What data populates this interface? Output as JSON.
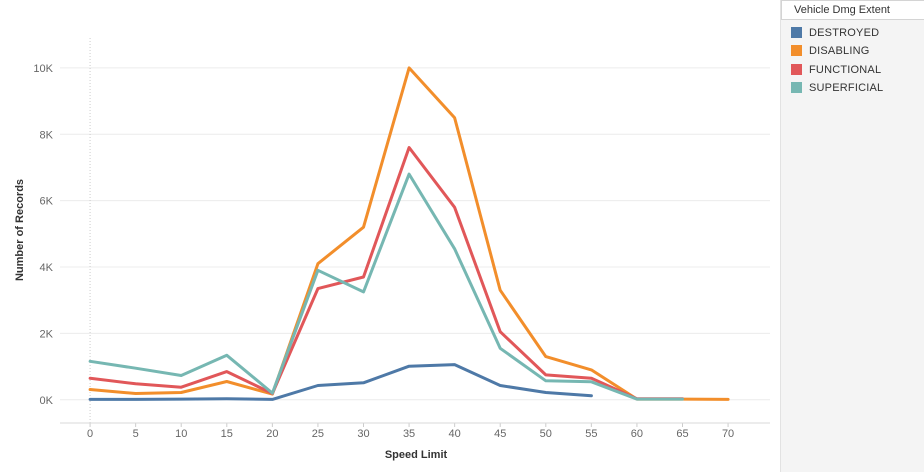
{
  "chart_data": {
    "type": "line",
    "xlabel": "Speed Limit",
    "ylabel": "Number of Records",
    "x": [
      0,
      5,
      10,
      15,
      20,
      25,
      30,
      35,
      40,
      45,
      50,
      55,
      60,
      65,
      70
    ],
    "x_tick_labels": [
      "0",
      "5",
      "10",
      "15",
      "20",
      "25",
      "30",
      "35",
      "40",
      "45",
      "50",
      "55",
      "60",
      "65",
      "70"
    ],
    "y_ticks": [
      0,
      2000,
      4000,
      6000,
      8000,
      10000
    ],
    "y_tick_labels": [
      "0K",
      "2K",
      "4K",
      "6K",
      "8K",
      "10K"
    ],
    "ylim": [
      -700,
      10900
    ],
    "grid": true,
    "legend_position": "right",
    "series": [
      {
        "name": "DESTROYED",
        "color": "#4e79a7",
        "values": [
          10,
          10,
          20,
          30,
          10,
          430,
          510,
          1010,
          1060,
          430,
          220,
          120,
          null,
          null,
          null
        ]
      },
      {
        "name": "DISABLING",
        "color": "#f28e2b",
        "values": [
          310,
          190,
          220,
          550,
          170,
          4100,
          5200,
          10000,
          8500,
          3300,
          1300,
          900,
          20,
          20,
          10
        ]
      },
      {
        "name": "FUNCTIONAL",
        "color": "#e15759",
        "values": [
          650,
          480,
          380,
          850,
          190,
          3350,
          3700,
          7600,
          5800,
          2050,
          750,
          650,
          30,
          30,
          null
        ]
      },
      {
        "name": "SUPERFICIAL",
        "color": "#76b7b2",
        "values": [
          1160,
          950,
          730,
          1340,
          200,
          3900,
          3250,
          6800,
          4550,
          1550,
          570,
          540,
          20,
          20,
          null
        ]
      }
    ]
  },
  "legend": {
    "title": "Vehicle Dmg Extent",
    "items": [
      {
        "label": "DESTROYED",
        "color": "#4e79a7"
      },
      {
        "label": "DISABLING",
        "color": "#f28e2b"
      },
      {
        "label": "FUNCTIONAL",
        "color": "#e15759"
      },
      {
        "label": "SUPERFICIAL",
        "color": "#76b7b2"
      }
    ]
  }
}
